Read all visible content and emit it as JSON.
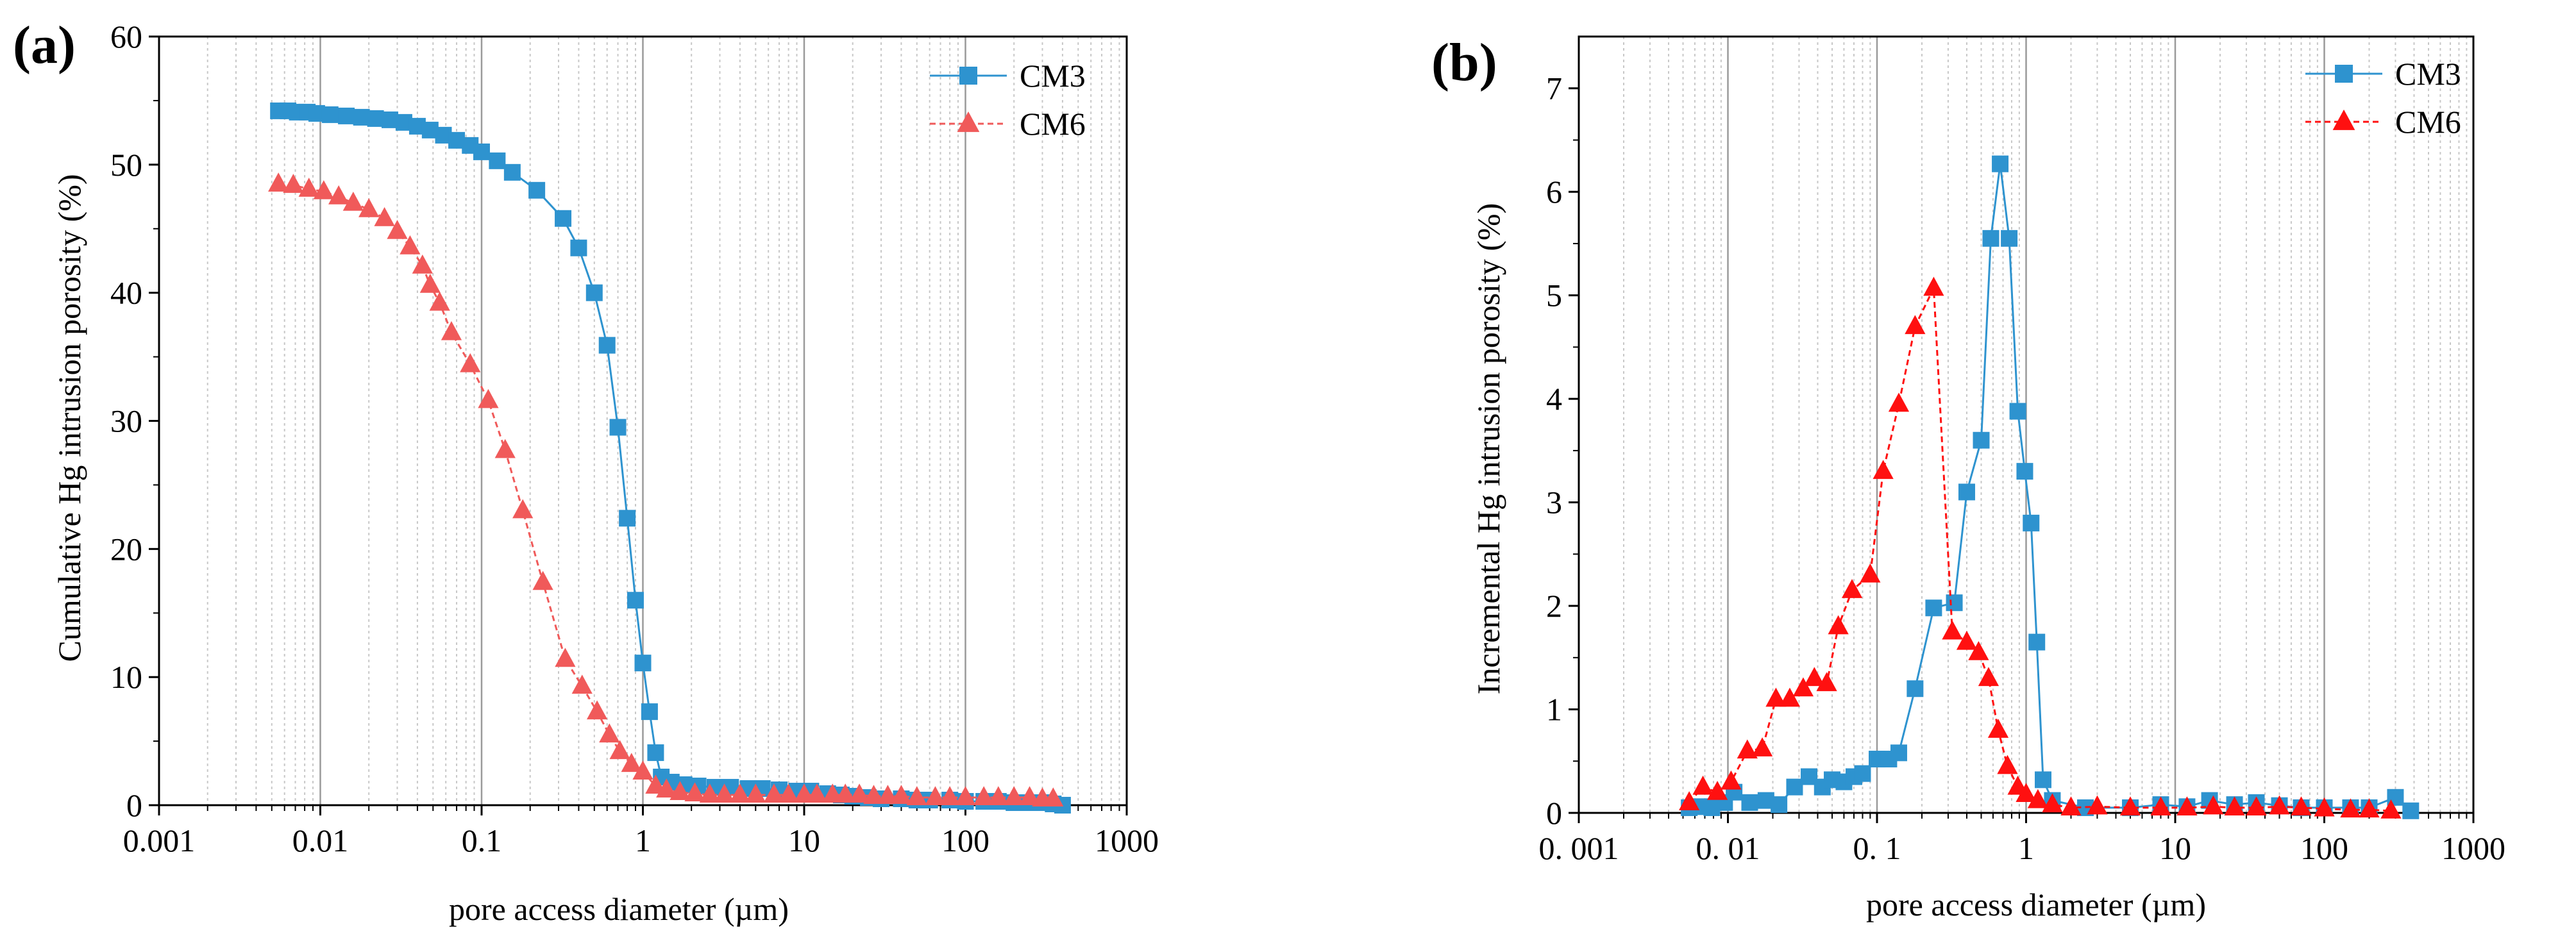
{
  "chart_data": [
    {
      "panel_label": "(a)",
      "type": "line",
      "xlabel": "pore access diameter (µm)",
      "ylabel": "Cumulative Hg intrusion porosity (%)",
      "x_scale": "log",
      "xlim": [
        0.001,
        1000
      ],
      "ylim": [
        0,
        60
      ],
      "x_ticks": [
        0.001,
        0.01,
        0.1,
        1,
        10,
        100,
        1000
      ],
      "x_tick_labels": [
        "0.001",
        "0.01",
        "0.1",
        "1",
        "10",
        "100",
        "1000"
      ],
      "y_ticks": [
        0,
        10,
        20,
        30,
        40,
        50,
        60
      ],
      "y_tick_labels": [
        "0",
        "10",
        "20",
        "30",
        "40",
        "50",
        "60"
      ],
      "grid": "vertical log gridlines",
      "legend": "top-right",
      "series": [
        {
          "name": "CM3",
          "color": "#2e93cf",
          "marker": "square",
          "line": "solid",
          "points": [
            [
              0.0055,
              54.2
            ],
            [
              0.0063,
              54.2
            ],
            [
              0.0072,
              54.1
            ],
            [
              0.0083,
              54.1
            ],
            [
              0.0095,
              54.0
            ],
            [
              0.0115,
              53.9
            ],
            [
              0.0145,
              53.8
            ],
            [
              0.018,
              53.7
            ],
            [
              0.022,
              53.6
            ],
            [
              0.027,
              53.5
            ],
            [
              0.033,
              53.3
            ],
            [
              0.04,
              53.0
            ],
            [
              0.048,
              52.7
            ],
            [
              0.058,
              52.3
            ],
            [
              0.07,
              51.9
            ],
            [
              0.085,
              51.5
            ],
            [
              0.1,
              51.0
            ],
            [
              0.125,
              50.3
            ],
            [
              0.155,
              49.4
            ],
            [
              0.22,
              48.0
            ],
            [
              0.32,
              45.8
            ],
            [
              0.4,
              43.5
            ],
            [
              0.5,
              40.0
            ],
            [
              0.6,
              35.9
            ],
            [
              0.7,
              29.5
            ],
            [
              0.8,
              22.4
            ],
            [
              0.9,
              16.0
            ],
            [
              1.0,
              11.1
            ],
            [
              1.1,
              7.3
            ],
            [
              1.2,
              4.1
            ],
            [
              1.3,
              2.2
            ],
            [
              1.5,
              1.8
            ],
            [
              1.8,
              1.6
            ],
            [
              2.2,
              1.5
            ],
            [
              2.8,
              1.4
            ],
            [
              3.5,
              1.4
            ],
            [
              4.5,
              1.3
            ],
            [
              5.5,
              1.3
            ],
            [
              7,
              1.2
            ],
            [
              9,
              1.1
            ],
            [
              11,
              1.1
            ],
            [
              14,
              0.9
            ],
            [
              17,
              0.8
            ],
            [
              20,
              0.7
            ],
            [
              25,
              0.6
            ],
            [
              30,
              0.5
            ],
            [
              40,
              0.5
            ],
            [
              50,
              0.4
            ],
            [
              60,
              0.4
            ],
            [
              80,
              0.4
            ],
            [
              100,
              0.3
            ],
            [
              130,
              0.3
            ],
            [
              160,
              0.3
            ],
            [
              200,
              0.2
            ],
            [
              250,
              0.2
            ],
            [
              300,
              0.2
            ],
            [
              350,
              0.1
            ],
            [
              400,
              0.0
            ]
          ]
        },
        {
          "name": "CM6",
          "color": "#f05a5a",
          "marker": "triangle",
          "line": "dashed",
          "points": [
            [
              0.0055,
              48.5
            ],
            [
              0.0068,
              48.4
            ],
            [
              0.0085,
              48.1
            ],
            [
              0.0105,
              47.9
            ],
            [
              0.013,
              47.5
            ],
            [
              0.016,
              47.0
            ],
            [
              0.02,
              46.5
            ],
            [
              0.025,
              45.8
            ],
            [
              0.03,
              44.8
            ],
            [
              0.036,
              43.6
            ],
            [
              0.043,
              42.1
            ],
            [
              0.048,
              40.6
            ],
            [
              0.055,
              39.2
            ],
            [
              0.065,
              36.9
            ],
            [
              0.085,
              34.4
            ],
            [
              0.11,
              31.6
            ],
            [
              0.14,
              27.7
            ],
            [
              0.18,
              23.0
            ],
            [
              0.24,
              17.4
            ],
            [
              0.33,
              11.4
            ],
            [
              0.42,
              9.3
            ],
            [
              0.52,
              7.3
            ],
            [
              0.62,
              5.5
            ],
            [
              0.72,
              4.2
            ],
            [
              0.85,
              3.2
            ],
            [
              1.0,
              2.6
            ],
            [
              1.2,
              1.5
            ],
            [
              1.4,
              1.2
            ],
            [
              1.7,
              1.0
            ],
            [
              2.1,
              0.9
            ],
            [
              2.6,
              0.8
            ],
            [
              3.2,
              0.8
            ],
            [
              4,
              0.8
            ],
            [
              5,
              0.8
            ],
            [
              6.5,
              0.8
            ],
            [
              8,
              0.8
            ],
            [
              10,
              0.8
            ],
            [
              12,
              0.8
            ],
            [
              15,
              0.8
            ],
            [
              18,
              0.8
            ],
            [
              22,
              0.8
            ],
            [
              27,
              0.7
            ],
            [
              33,
              0.7
            ],
            [
              40,
              0.7
            ],
            [
              50,
              0.6
            ],
            [
              65,
              0.6
            ],
            [
              80,
              0.6
            ],
            [
              100,
              0.6
            ],
            [
              130,
              0.6
            ],
            [
              160,
              0.6
            ],
            [
              200,
              0.6
            ],
            [
              250,
              0.6
            ],
            [
              300,
              0.5
            ],
            [
              350,
              0.5
            ]
          ]
        }
      ]
    },
    {
      "panel_label": "(b)",
      "type": "line",
      "xlabel": "pore access diameter (µm)",
      "ylabel": "Incremental Hg intrusion porosity (%)",
      "x_scale": "log",
      "xlim": [
        0.001,
        1000
      ],
      "ylim": [
        0,
        7.5
      ],
      "x_ticks": [
        0.001,
        0.01,
        0.1,
        1,
        10,
        100,
        1000
      ],
      "x_tick_labels": [
        "0. 001",
        "0. 01",
        "0. 1",
        "1",
        "10",
        "100",
        "1000"
      ],
      "y_ticks": [
        0,
        1,
        2,
        3,
        4,
        5,
        6,
        7
      ],
      "y_tick_labels": [
        "0",
        "1",
        "2",
        "3",
        "4",
        "5",
        "6",
        "7"
      ],
      "grid": "vertical log gridlines",
      "legend": "top-right",
      "series": [
        {
          "name": "CM3",
          "color": "#2e93cf",
          "marker": "square",
          "line": "solid",
          "points": [
            [
              0.0055,
              0.05
            ],
            [
              0.0065,
              0.06
            ],
            [
              0.0078,
              0.05
            ],
            [
              0.0095,
              0.1
            ],
            [
              0.011,
              0.2
            ],
            [
              0.014,
              0.1
            ],
            [
              0.018,
              0.12
            ],
            [
              0.022,
              0.08
            ],
            [
              0.028,
              0.25
            ],
            [
              0.035,
              0.35
            ],
            [
              0.043,
              0.25
            ],
            [
              0.05,
              0.32
            ],
            [
              0.06,
              0.3
            ],
            [
              0.07,
              0.35
            ],
            [
              0.08,
              0.38
            ],
            [
              0.1,
              0.52
            ],
            [
              0.12,
              0.52
            ],
            [
              0.14,
              0.58
            ],
            [
              0.18,
              1.2
            ],
            [
              0.24,
              1.98
            ],
            [
              0.33,
              2.03
            ],
            [
              0.4,
              3.1
            ],
            [
              0.5,
              3.6
            ],
            [
              0.58,
              5.55
            ],
            [
              0.67,
              6.27
            ],
            [
              0.77,
              5.55
            ],
            [
              0.88,
              3.88
            ],
            [
              0.98,
              3.3
            ],
            [
              1.08,
              2.8
            ],
            [
              1.18,
              1.65
            ],
            [
              1.3,
              0.32
            ],
            [
              1.5,
              0.12
            ],
            [
              2.5,
              0.05
            ],
            [
              5,
              0.05
            ],
            [
              8,
              0.08
            ],
            [
              12,
              0.06
            ],
            [
              17,
              0.12
            ],
            [
              25,
              0.08
            ],
            [
              35,
              0.1
            ],
            [
              50,
              0.07
            ],
            [
              70,
              0.05
            ],
            [
              100,
              0.05
            ],
            [
              150,
              0.05
            ],
            [
              200,
              0.05
            ],
            [
              300,
              0.15
            ],
            [
              380,
              0.02
            ]
          ]
        },
        {
          "name": "CM6",
          "color": "#ff1010",
          "marker": "triangle",
          "line": "dashed",
          "points": [
            [
              0.0055,
              0.1
            ],
            [
              0.0068,
              0.25
            ],
            [
              0.0085,
              0.2
            ],
            [
              0.0105,
              0.3
            ],
            [
              0.0135,
              0.6
            ],
            [
              0.017,
              0.62
            ],
            [
              0.021,
              1.1
            ],
            [
              0.026,
              1.1
            ],
            [
              0.032,
              1.2
            ],
            [
              0.038,
              1.3
            ],
            [
              0.046,
              1.25
            ],
            [
              0.055,
              1.8
            ],
            [
              0.068,
              2.15
            ],
            [
              0.09,
              2.3
            ],
            [
              0.11,
              3.3
            ],
            [
              0.14,
              3.95
            ],
            [
              0.18,
              4.7
            ],
            [
              0.24,
              5.07
            ],
            [
              0.32,
              1.75
            ],
            [
              0.4,
              1.65
            ],
            [
              0.48,
              1.55
            ],
            [
              0.56,
              1.3
            ],
            [
              0.65,
              0.8
            ],
            [
              0.75,
              0.45
            ],
            [
              0.88,
              0.25
            ],
            [
              1.0,
              0.18
            ],
            [
              1.2,
              0.12
            ],
            [
              1.5,
              0.08
            ],
            [
              2,
              0.05
            ],
            [
              3,
              0.06
            ],
            [
              5,
              0.05
            ],
            [
              8,
              0.05
            ],
            [
              12,
              0.05
            ],
            [
              18,
              0.06
            ],
            [
              25,
              0.05
            ],
            [
              35,
              0.05
            ],
            [
              50,
              0.06
            ],
            [
              70,
              0.05
            ],
            [
              100,
              0.04
            ],
            [
              150,
              0.03
            ],
            [
              200,
              0.03
            ],
            [
              280,
              0.02
            ]
          ]
        }
      ]
    }
  ]
}
